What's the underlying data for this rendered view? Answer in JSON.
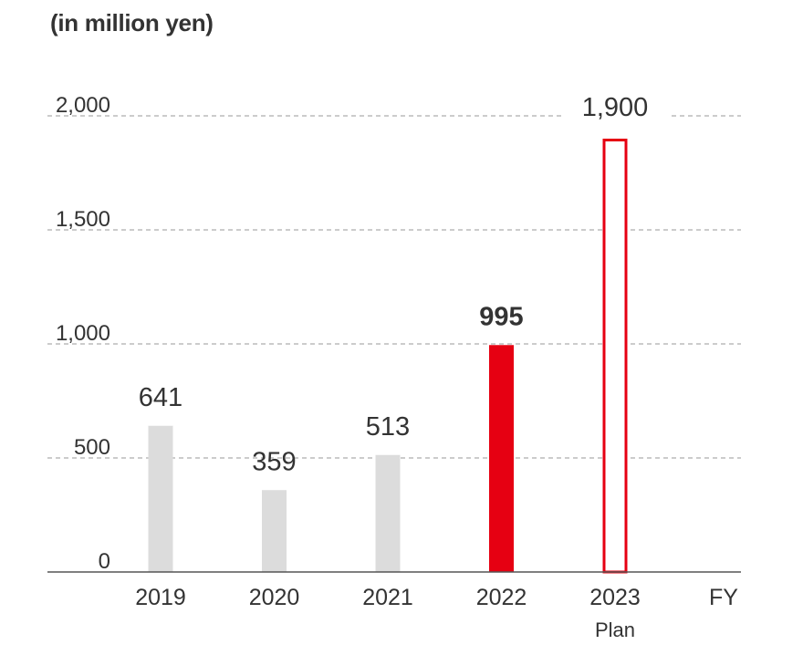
{
  "chart_data": {
    "type": "bar",
    "unit_label": "(in million yen)",
    "categories": [
      "2019",
      "2020",
      "2021",
      "2022",
      "2023"
    ],
    "category_sublabels": [
      "",
      "",
      "",
      "",
      "Plan"
    ],
    "values": [
      641,
      359,
      513,
      995,
      1900
    ],
    "value_labels": [
      "641",
      "359",
      "513",
      "995",
      "1,900"
    ],
    "bar_styles": [
      "past",
      "past",
      "past",
      "current",
      "plan"
    ],
    "xlabel": "FY",
    "ylabel": "",
    "ylim": [
      0,
      2000
    ],
    "yticks": [
      0,
      500,
      1000,
      1500,
      2000
    ],
    "ytick_labels": [
      "0",
      "500",
      "1,000",
      "1,500",
      "2,000"
    ],
    "grid": true,
    "colors": {
      "past": "#dcdcdc",
      "current": "#e60012",
      "plan_outline": "#e60012",
      "grid": "#9a9a9a",
      "axis": "#555555",
      "text": "#333333"
    }
  }
}
